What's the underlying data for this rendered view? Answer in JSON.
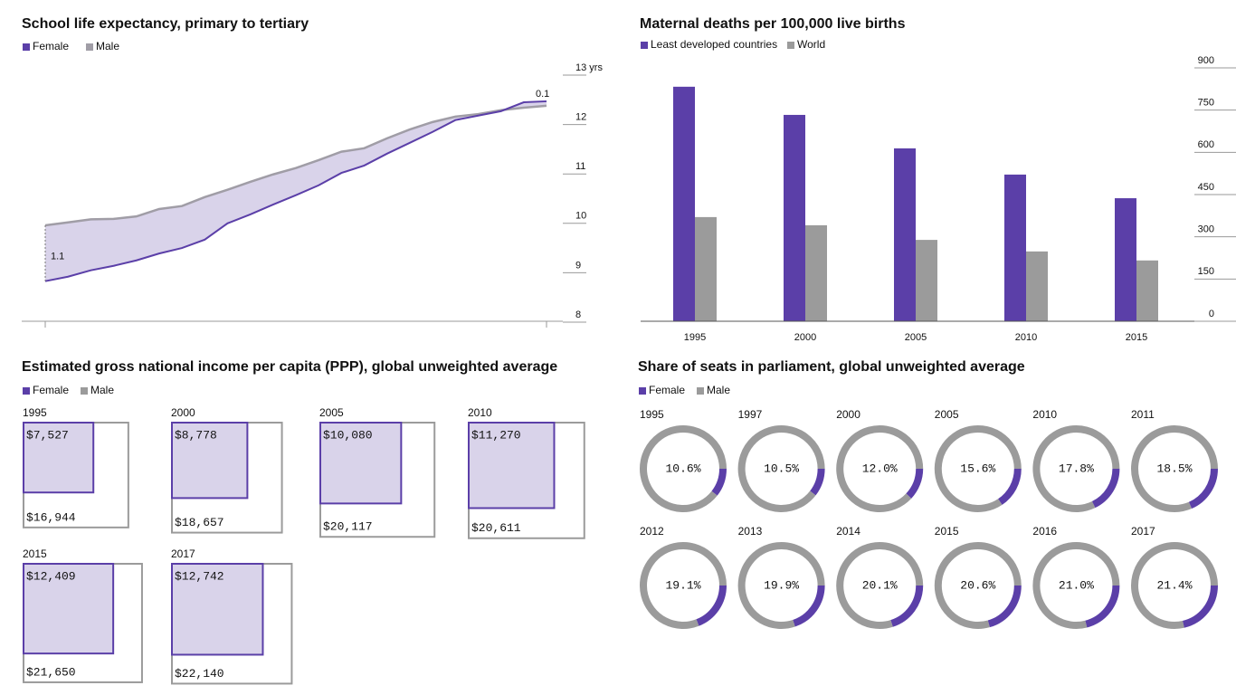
{
  "chart_data": [
    {
      "type": "area",
      "title": "School life expectancy, primary to tertiary",
      "series": [
        {
          "name": "Female",
          "color": "#5b3fa8",
          "values": [
            8.83,
            8.92,
            9.05,
            9.14,
            9.25,
            9.39,
            9.5,
            9.67,
            10.0,
            10.18,
            10.38,
            10.57,
            10.77,
            11.02,
            11.17,
            11.41,
            11.63,
            11.85,
            12.09,
            12.18,
            12.27,
            12.45,
            12.47
          ]
        },
        {
          "name": "Male",
          "color": "#a09da6",
          "values": [
            9.96,
            10.02,
            10.08,
            10.09,
            10.14,
            10.29,
            10.35,
            10.53,
            10.68,
            10.84,
            10.99,
            11.12,
            11.28,
            11.45,
            11.52,
            11.72,
            11.9,
            12.05,
            12.16,
            12.21,
            12.29,
            12.34,
            12.38
          ]
        }
      ],
      "fill": "#d9d3ea",
      "ylim": [
        8,
        13
      ],
      "yticks": [
        8,
        9,
        10,
        11,
        12,
        {
          "value": 13,
          "label": "13 yrs"
        }
      ],
      "annotations": [
        "1.1",
        "0.1"
      ]
    },
    {
      "type": "bar",
      "title": "Maternal deaths per 100,000 live births",
      "categories": [
        "1995",
        "2000",
        "2005",
        "2010",
        "2015"
      ],
      "series": [
        {
          "name": "Least developed countries",
          "color": "#5b3fa8",
          "values": [
            833,
            733,
            614,
            521,
            437
          ]
        },
        {
          "name": "World",
          "color": "#9b9b9b",
          "values": [
            370,
            341,
            289,
            248,
            216
          ]
        }
      ],
      "ylim": [
        0,
        900
      ],
      "yticks": [
        0,
        150,
        300,
        450,
        600,
        750,
        900
      ]
    },
    {
      "type": "square",
      "title": "Estimated gross national income per capita (PPP), global unweighted average",
      "categories": [
        "1995",
        "2000",
        "2005",
        "2010",
        "2015",
        "2017"
      ],
      "series": [
        {
          "name": "Female",
          "color": "#5b3fa8",
          "values": [
            7527,
            8778,
            10080,
            11270,
            12409,
            12742
          ],
          "value_labels": [
            "$7,527",
            "$8,778",
            "$10,080",
            "$11,270",
            "$12,409",
            "$12,742"
          ]
        },
        {
          "name": "Male",
          "color": "#9b9b9b",
          "values": [
            16944,
            18657,
            20117,
            20611,
            21650,
            22140
          ],
          "value_labels": [
            "$16,944",
            "$18,657",
            "$20,117",
            "$20,611",
            "$21,650",
            "$22,140"
          ]
        }
      ],
      "fill": "#d9d3ea"
    },
    {
      "type": "donut",
      "title": "Share of seats in parliament, global unweighted average",
      "categories": [
        "1995",
        "1997",
        "2000",
        "2005",
        "2010",
        "2011",
        "2012",
        "2013",
        "2014",
        "2015",
        "2016",
        "2017"
      ],
      "series": [
        {
          "name": "Female",
          "color": "#5b3fa8",
          "values": [
            10.6,
            10.5,
            12.0,
            15.6,
            17.8,
            18.5,
            19.1,
            19.9,
            20.1,
            20.6,
            21.0,
            21.4
          ],
          "value_labels": [
            "10.6%",
            "10.5%",
            "12.0%",
            "15.6%",
            "17.8%",
            "18.5%",
            "19.1%",
            "19.9%",
            "20.1%",
            "20.6%",
            "21.0%",
            "21.4%"
          ]
        },
        {
          "name": "Male",
          "color": "#9b9b9b",
          "values": [
            89.4,
            89.5,
            88.0,
            84.4,
            82.2,
            81.5,
            80.9,
            80.1,
            79.9,
            79.4,
            79.0,
            78.6
          ]
        }
      ]
    }
  ]
}
